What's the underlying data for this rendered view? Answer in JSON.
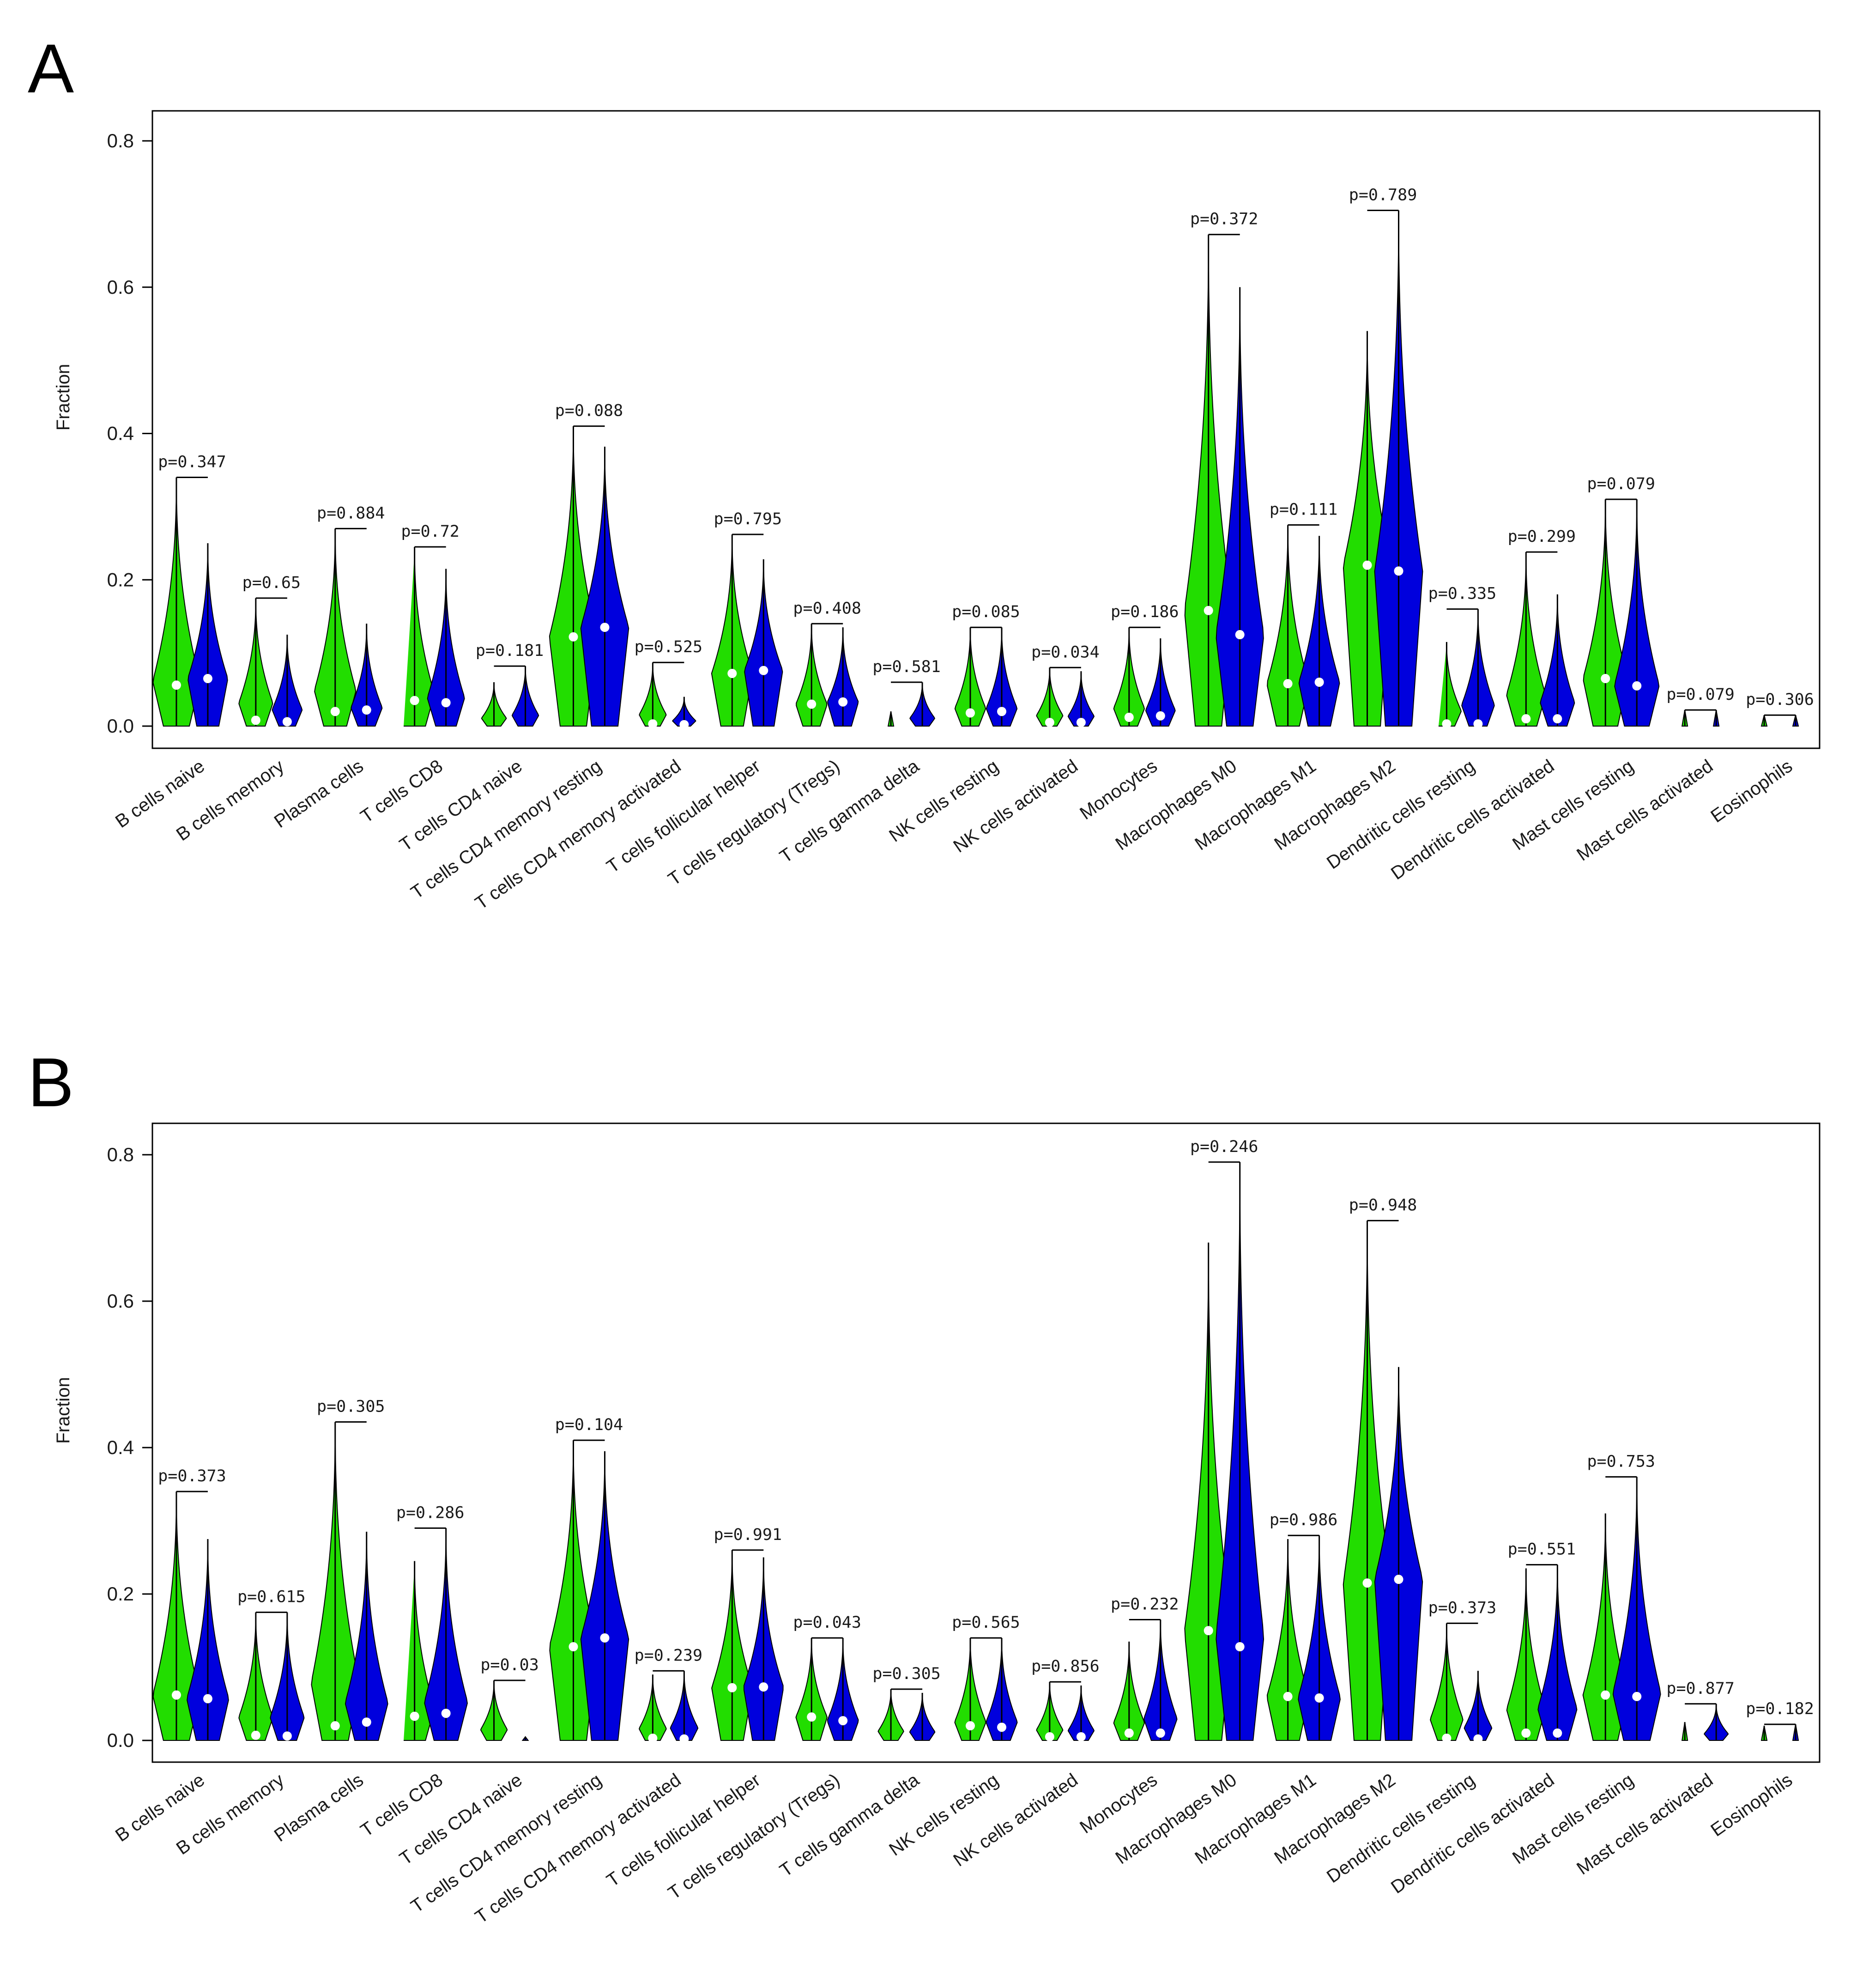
{
  "colors": {
    "group1": "#22DD00",
    "group2": "#0000DD",
    "median": "#ffffff",
    "axis": "#000000"
  },
  "chart_data": [
    {
      "panel": "A",
      "type": "violin",
      "ylabel": "Fraction",
      "ylim": [
        0,
        0.85
      ],
      "yticks": [
        "0.0",
        "0.2",
        "0.4",
        "0.6",
        "0.8"
      ],
      "categories": [
        "B cells naive",
        "B cells memory",
        "Plasma cells",
        "T cells CD8",
        "T cells CD4 naive",
        "T cells CD4 memory resting",
        "T cells CD4 memory activated",
        "T cells follicular helper",
        "T cells regulatory (Tregs)",
        "T cells gamma delta",
        "NK cells resting",
        "NK cells activated",
        "Monocytes",
        "Macrophages M0",
        "Macrophages M1",
        "Macrophages M2",
        "Dendritic cells resting",
        "Dendritic cells activated",
        "Mast cells resting",
        "Mast cells activated",
        "Eosinophils"
      ],
      "pvalues": [
        "p=0.347",
        "p=0.65",
        "p=0.884",
        "p=0.72",
        "p=0.181",
        "p=0.088",
        "p=0.525",
        "p=0.795",
        "p=0.408",
        "p=0.581",
        "p=0.085",
        "p=0.034",
        "p=0.186",
        "p=0.372",
        "p=0.111",
        "p=0.789",
        "p=0.335",
        "p=0.299",
        "p=0.079",
        "p=0.079",
        "p=0.306"
      ],
      "series": [
        {
          "color": "#22DD00",
          "median": [
            0.056,
            0.008,
            0.02,
            0.035,
            0,
            0.122,
            0.003,
            0.072,
            0.03,
            0,
            0.018,
            0.005,
            0.012,
            0.158,
            0.058,
            0.22,
            0.003,
            0.01,
            0.065,
            0,
            0
          ],
          "max": [
            0.34,
            0.175,
            0.27,
            0.245,
            0.06,
            0.41,
            0.087,
            0.262,
            0.14,
            0.02,
            0.135,
            0.08,
            0.135,
            0.672,
            0.275,
            0.54,
            0.115,
            0.238,
            0.31,
            0.022,
            0.015
          ]
        },
        {
          "color": "#0000DD",
          "median": [
            0.065,
            0.006,
            0.022,
            0.032,
            0,
            0.135,
            0.002,
            0.076,
            0.033,
            0,
            0.02,
            0.005,
            0.014,
            0.125,
            0.06,
            0.212,
            0.003,
            0.01,
            0.055,
            0,
            0
          ],
          "max": [
            0.25,
            0.125,
            0.14,
            0.215,
            0.082,
            0.382,
            0.04,
            0.228,
            0.135,
            0.06,
            0.135,
            0.075,
            0.12,
            0.6,
            0.26,
            0.705,
            0.16,
            0.18,
            0.31,
            0.022,
            0.015
          ]
        }
      ]
    },
    {
      "panel": "B",
      "type": "violin",
      "ylabel": "Fraction",
      "ylim": [
        0,
        0.85
      ],
      "yticks": [
        "0.0",
        "0.2",
        "0.4",
        "0.6",
        "0.8"
      ],
      "categories": [
        "B cells naive",
        "B cells memory",
        "Plasma cells",
        "T cells CD8",
        "T cells CD4 naive",
        "T cells CD4 memory resting",
        "T cells CD4 memory activated",
        "T cells follicular helper",
        "T cells regulatory (Tregs)",
        "T cells gamma delta",
        "NK cells resting",
        "NK cells activated",
        "Monocytes",
        "Macrophages M0",
        "Macrophages M1",
        "Macrophages M2",
        "Dendritic cells resting",
        "Dendritic cells activated",
        "Mast cells resting",
        "Mast cells activated",
        "Eosinophils"
      ],
      "pvalues": [
        "p=0.373",
        "p=0.615",
        "p=0.305",
        "p=0.286",
        "p=0.03",
        "p=0.104",
        "p=0.239",
        "p=0.991",
        "p=0.043",
        "p=0.305",
        "p=0.565",
        "p=0.856",
        "p=0.232",
        "p=0.246",
        "p=0.986",
        "p=0.948",
        "p=0.373",
        "p=0.551",
        "p=0.753",
        "p=0.877",
        "p=0.182"
      ],
      "series": [
        {
          "color": "#22DD00",
          "median": [
            0.062,
            0.007,
            0.02,
            0.033,
            0,
            0.128,
            0.003,
            0.072,
            0.032,
            0,
            0.02,
            0.005,
            0.01,
            0.15,
            0.06,
            0.215,
            0.003,
            0.01,
            0.062,
            0,
            0
          ],
          "max": [
            0.34,
            0.175,
            0.435,
            0.245,
            0.082,
            0.41,
            0.09,
            0.26,
            0.14,
            0.07,
            0.14,
            0.08,
            0.135,
            0.68,
            0.275,
            0.71,
            0.16,
            0.235,
            0.31,
            0.025,
            0.02
          ]
        },
        {
          "color": "#0000DD",
          "median": [
            0.057,
            0.006,
            0.025,
            0.037,
            0,
            0.14,
            0.002,
            0.073,
            0.027,
            0,
            0.018,
            0.005,
            0.01,
            0.128,
            0.058,
            0.22,
            0.002,
            0.01,
            0.06,
            0,
            0
          ],
          "max": [
            0.275,
            0.175,
            0.285,
            0.29,
            0.005,
            0.395,
            0.095,
            0.25,
            0.14,
            0.065,
            0.14,
            0.075,
            0.165,
            0.79,
            0.28,
            0.51,
            0.095,
            0.24,
            0.36,
            0.05,
            0.022
          ]
        }
      ]
    }
  ]
}
